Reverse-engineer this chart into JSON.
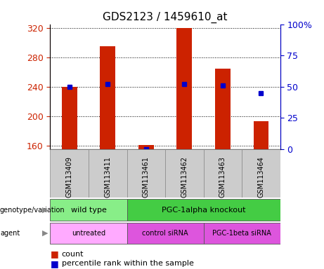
{
  "title": "GDS2123 / 1459610_at",
  "samples": [
    "GSM113409",
    "GSM113411",
    "GSM113461",
    "GSM113462",
    "GSM113463",
    "GSM113464"
  ],
  "count_values": [
    240,
    295,
    161,
    320,
    265,
    193
  ],
  "percentile_values": [
    50,
    52,
    0,
    52,
    51,
    45
  ],
  "ymin": 155,
  "ymax": 325,
  "yticks_left": [
    160,
    200,
    240,
    280,
    320
  ],
  "yticks_right": [
    0,
    25,
    50,
    75,
    100
  ],
  "bar_color": "#cc2200",
  "dot_color": "#0000cc",
  "bg_color": "#ffffff",
  "genotype_groups": [
    {
      "label": "wild type",
      "span": [
        0,
        2
      ],
      "color": "#88ee88"
    },
    {
      "label": "PGC-1alpha knockout",
      "span": [
        2,
        6
      ],
      "color": "#44cc44"
    }
  ],
  "agent_groups": [
    {
      "label": "untreated",
      "span": [
        0,
        2
      ],
      "color": "#ffaaff"
    },
    {
      "label": "control siRNA",
      "span": [
        2,
        4
      ],
      "color": "#dd55dd"
    },
    {
      "label": "PGC-1beta siRNA",
      "span": [
        4,
        6
      ],
      "color": "#dd55dd"
    }
  ],
  "left_label_color": "#cc2200",
  "right_label_color": "#0000cc",
  "title_fontsize": 11,
  "tick_fontsize": 9,
  "sample_fontsize": 7,
  "annot_fontsize": 8,
  "legend_fontsize": 8
}
